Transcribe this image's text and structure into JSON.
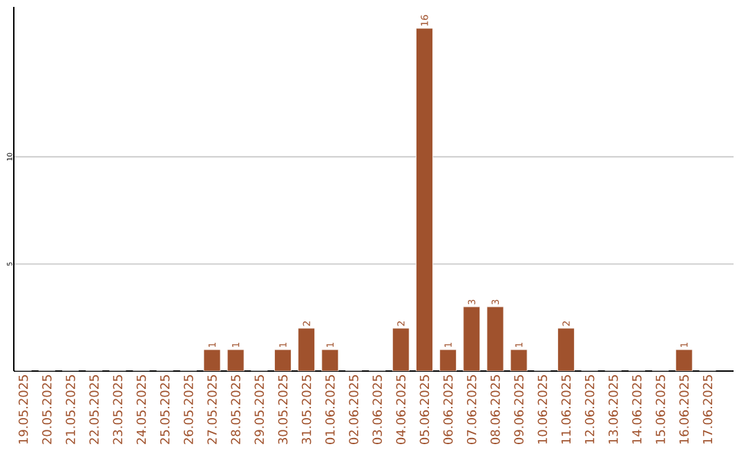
{
  "chart_data": {
    "type": "bar",
    "categories": [
      "19.05.2025",
      "20.05.2025",
      "21.05.2025",
      "22.05.2025",
      "23.05.2025",
      "24.05.2025",
      "25.05.2025",
      "26.05.2025",
      "27.05.2025",
      "28.05.2025",
      "29.05.2025",
      "30.05.2025",
      "31.05.2025",
      "01.06.2025",
      "02.06.2025",
      "03.06.2025",
      "04.06.2025",
      "05.06.2025",
      "06.06.2025",
      "07.06.2025",
      "08.06.2025",
      "09.06.2025",
      "10.06.2025",
      "11.06.2025",
      "12.06.2025",
      "13.06.2025",
      "14.06.2025",
      "15.06.2025",
      "16.06.2025",
      "17.06.2025"
    ],
    "values": [
      0,
      0,
      0,
      0,
      0,
      0,
      0,
      0,
      1,
      1,
      0,
      1,
      2,
      1,
      0,
      0,
      2,
      16,
      1,
      3,
      3,
      1,
      0,
      2,
      0,
      0,
      0,
      0,
      1,
      0
    ],
    "value_labels": [
      null,
      null,
      null,
      null,
      null,
      null,
      null,
      null,
      "1",
      "1",
      null,
      "1",
      "2",
      "1",
      null,
      null,
      "2",
      "16",
      "1",
      "3",
      "3",
      "1",
      null,
      "2",
      null,
      null,
      null,
      null,
      "1",
      null
    ],
    "color": "#a0522d",
    "ylim": [
      0,
      17
    ],
    "yticks": [
      5,
      10
    ],
    "grid": "y"
  }
}
